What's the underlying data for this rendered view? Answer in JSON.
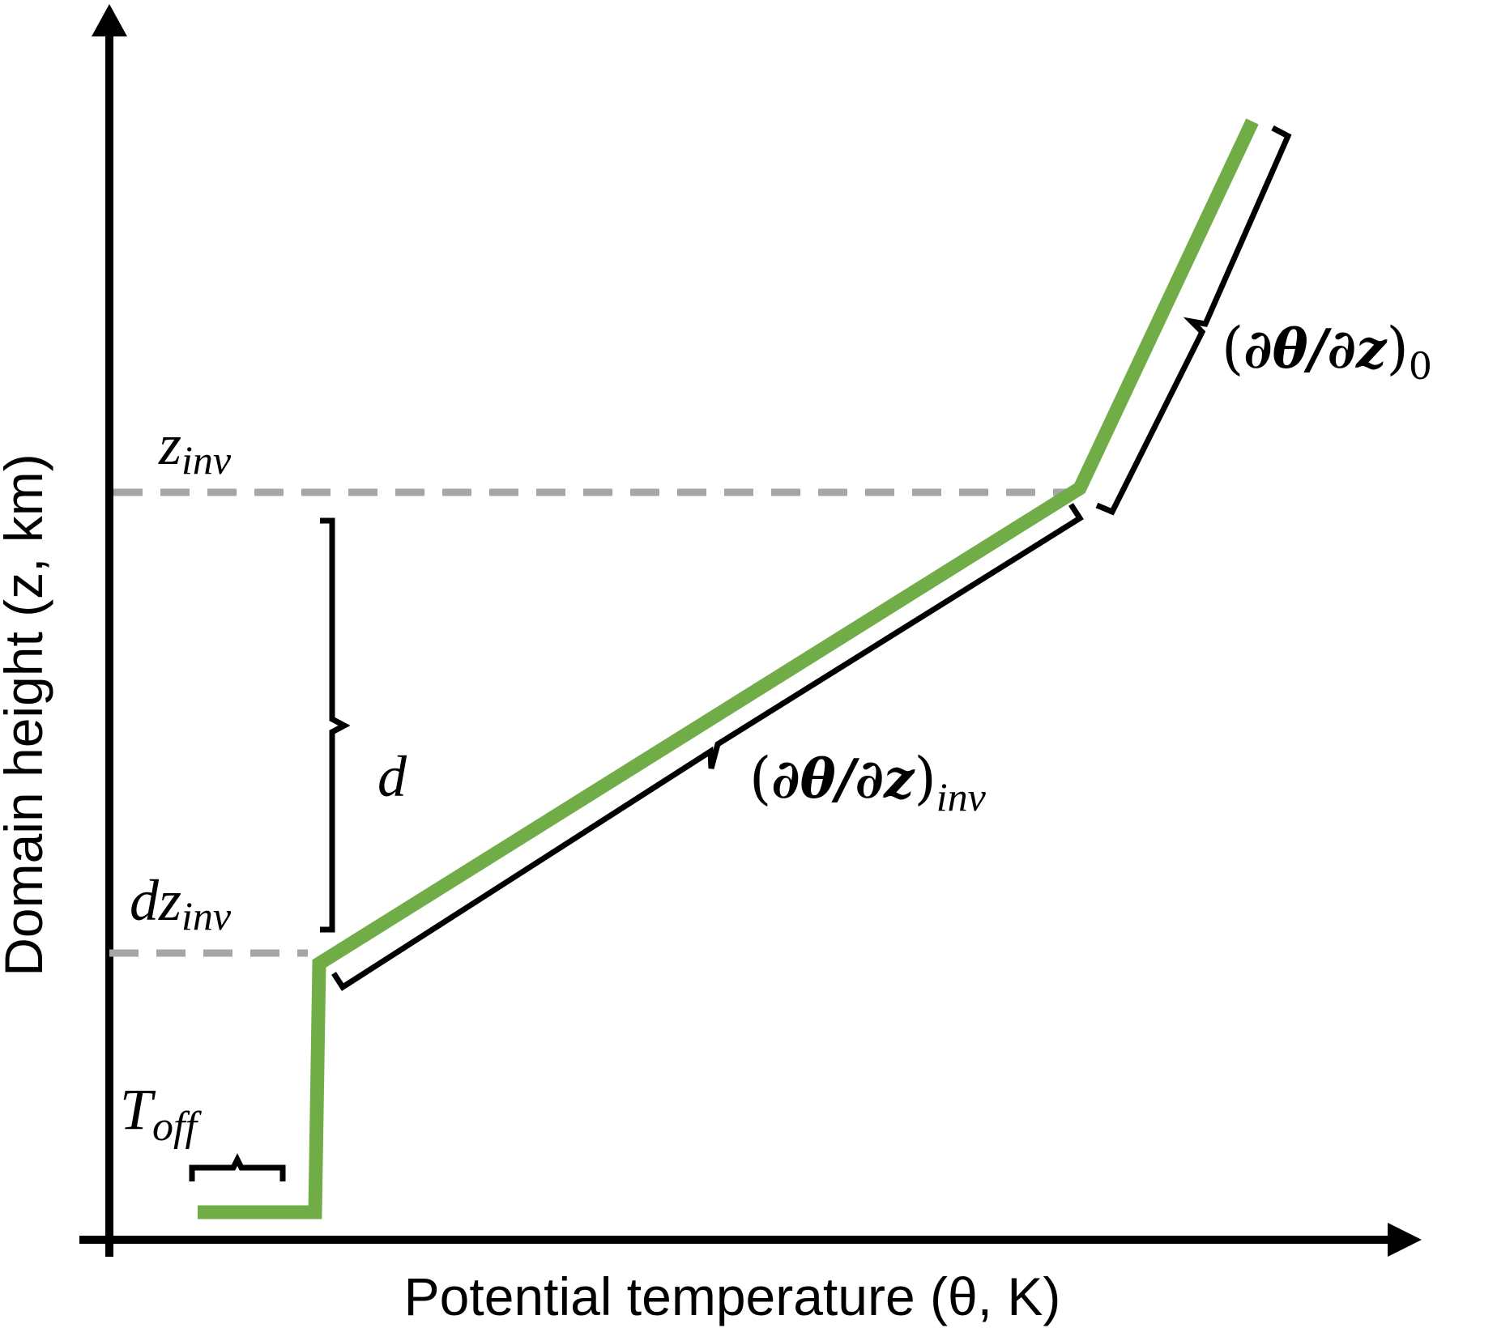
{
  "axes": {
    "x_label": "Potential temperature (θ, K)",
    "y_label": "Domain height (z, km)"
  },
  "labels": {
    "z_inv": {
      "base": "z",
      "sub": "inv"
    },
    "dz_inv": {
      "base": "dz",
      "sub": "inv"
    },
    "d": "d",
    "T_off": {
      "base": "T",
      "sub": "off"
    },
    "gradient_inv": {
      "open": "(",
      "body": "∂θ/∂z",
      "close": ")",
      "sub": "inv"
    },
    "gradient_0": {
      "open": "(",
      "body": "∂θ/∂z",
      "close": ")",
      "sub": "0"
    }
  },
  "colors": {
    "profile": "#70ad47",
    "guide": "#a6a6a6",
    "axis": "#000000"
  }
}
